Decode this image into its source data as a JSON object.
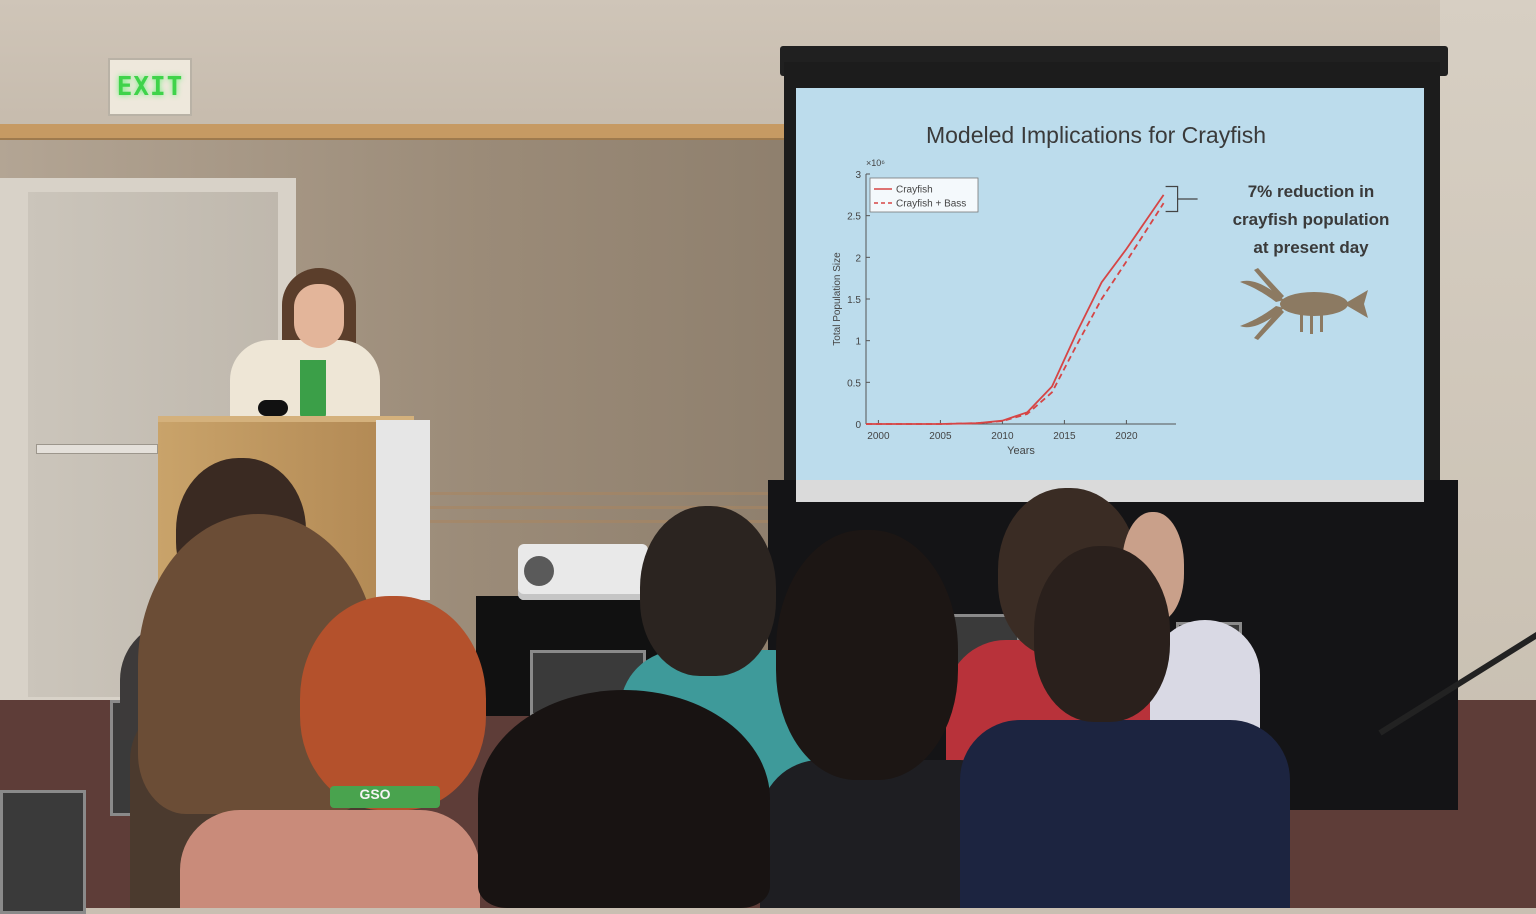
{
  "exit_sign": {
    "text": "EXIT"
  },
  "slide": {
    "title": "Modeled Implications for Crayfish",
    "note_lines": [
      "7% reduction in",
      "crayfish population",
      "at present day"
    ]
  },
  "badge": {
    "text": "GSO"
  },
  "chart_data": {
    "type": "line",
    "xlabel": "Years",
    "ylabel": "Total Population Size",
    "y_multiplier": "×10⁶",
    "xlim": [
      1999,
      2024
    ],
    "ylim": [
      0,
      3
    ],
    "xticks": [
      2000,
      2005,
      2010,
      2015,
      2020
    ],
    "yticks": [
      0,
      0.5,
      1,
      1.5,
      2,
      2.5,
      3
    ],
    "legend_position": "top-left",
    "grid": false,
    "series": [
      {
        "name": "Crayfish",
        "color": "#d64545",
        "dash": "solid",
        "x": [
          1999,
          2005,
          2008,
          2010,
          2012,
          2014,
          2016,
          2018,
          2020,
          2023
        ],
        "y": [
          0,
          0,
          0.01,
          0.04,
          0.14,
          0.45,
          1.1,
          1.7,
          2.1,
          2.75
        ]
      },
      {
        "name": "Crayfish + Bass",
        "color": "#d64545",
        "dash": "dashed",
        "x": [
          1999,
          2005,
          2008,
          2010,
          2012,
          2014,
          2016,
          2018,
          2020,
          2023
        ],
        "y": [
          0,
          0,
          0.01,
          0.035,
          0.12,
          0.38,
          0.95,
          1.5,
          1.95,
          2.65
        ]
      }
    ]
  }
}
